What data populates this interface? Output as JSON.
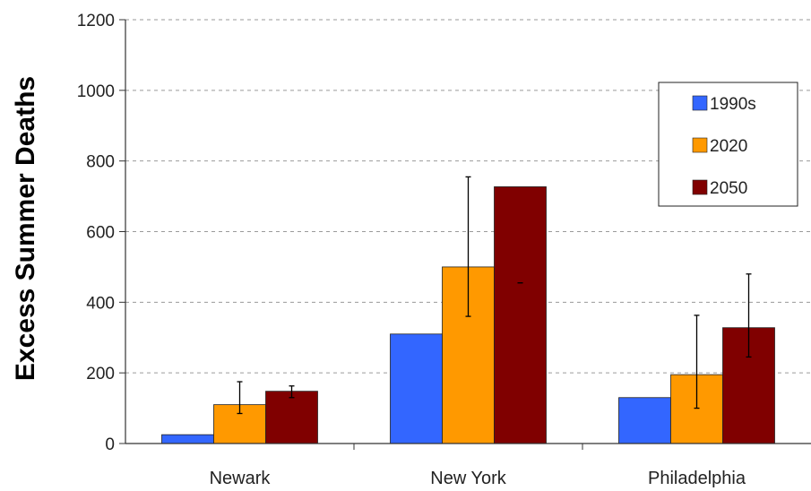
{
  "chart_data": {
    "type": "bar",
    "title": "",
    "xlabel": "",
    "ylabel": "Excess Summer Deaths",
    "ylim": [
      0,
      1200
    ],
    "yticks": [
      "0",
      "200",
      "400",
      "600",
      "800",
      "1000",
      "1200"
    ],
    "grid": true,
    "legend_position": "top-right",
    "categories": [
      "Newark",
      "New York",
      "Philadelphia"
    ],
    "series": [
      {
        "name": "1990s",
        "color": "#3366ff",
        "values": [
          25,
          310,
          130
        ]
      },
      {
        "name": "2020",
        "color": "#ff9900",
        "values": [
          110,
          500,
          195
        ]
      },
      {
        "name": "2050",
        "color": "#800000",
        "values": [
          148,
          727,
          328
        ]
      }
    ],
    "error_bars": {
      "2020": [
        [
          85,
          175
        ],
        [
          360,
          755
        ],
        [
          100,
          363
        ]
      ],
      "2050": [
        [
          130,
          163
        ],
        [
          455,
          455
        ],
        [
          245,
          480
        ]
      ]
    }
  }
}
